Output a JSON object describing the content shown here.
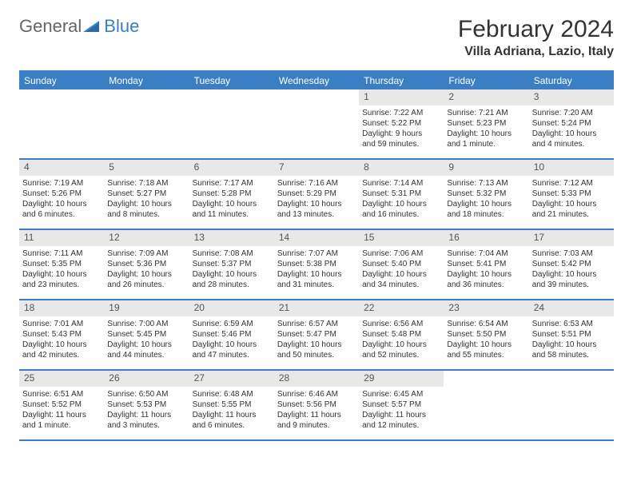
{
  "logo": {
    "text1": "General",
    "text2": "Blue"
  },
  "title": "February 2024",
  "location": "Villa Adriana, Lazio, Italy",
  "colors": {
    "accent": "#3a7fc4",
    "header_bg": "#3a7fc4",
    "header_text": "#ffffff",
    "daynum_bg": "#e8e8e8",
    "text": "#333333"
  },
  "day_headers": [
    "Sunday",
    "Monday",
    "Tuesday",
    "Wednesday",
    "Thursday",
    "Friday",
    "Saturday"
  ],
  "weeks": [
    [
      {
        "empty": true
      },
      {
        "empty": true
      },
      {
        "empty": true
      },
      {
        "empty": true
      },
      {
        "num": "1",
        "sunrise": "Sunrise: 7:22 AM",
        "sunset": "Sunset: 5:22 PM",
        "daylight1": "Daylight: 9 hours",
        "daylight2": "and 59 minutes."
      },
      {
        "num": "2",
        "sunrise": "Sunrise: 7:21 AM",
        "sunset": "Sunset: 5:23 PM",
        "daylight1": "Daylight: 10 hours",
        "daylight2": "and 1 minute."
      },
      {
        "num": "3",
        "sunrise": "Sunrise: 7:20 AM",
        "sunset": "Sunset: 5:24 PM",
        "daylight1": "Daylight: 10 hours",
        "daylight2": "and 4 minutes."
      }
    ],
    [
      {
        "num": "4",
        "sunrise": "Sunrise: 7:19 AM",
        "sunset": "Sunset: 5:26 PM",
        "daylight1": "Daylight: 10 hours",
        "daylight2": "and 6 minutes."
      },
      {
        "num": "5",
        "sunrise": "Sunrise: 7:18 AM",
        "sunset": "Sunset: 5:27 PM",
        "daylight1": "Daylight: 10 hours",
        "daylight2": "and 8 minutes."
      },
      {
        "num": "6",
        "sunrise": "Sunrise: 7:17 AM",
        "sunset": "Sunset: 5:28 PM",
        "daylight1": "Daylight: 10 hours",
        "daylight2": "and 11 minutes."
      },
      {
        "num": "7",
        "sunrise": "Sunrise: 7:16 AM",
        "sunset": "Sunset: 5:29 PM",
        "daylight1": "Daylight: 10 hours",
        "daylight2": "and 13 minutes."
      },
      {
        "num": "8",
        "sunrise": "Sunrise: 7:14 AM",
        "sunset": "Sunset: 5:31 PM",
        "daylight1": "Daylight: 10 hours",
        "daylight2": "and 16 minutes."
      },
      {
        "num": "9",
        "sunrise": "Sunrise: 7:13 AM",
        "sunset": "Sunset: 5:32 PM",
        "daylight1": "Daylight: 10 hours",
        "daylight2": "and 18 minutes."
      },
      {
        "num": "10",
        "sunrise": "Sunrise: 7:12 AM",
        "sunset": "Sunset: 5:33 PM",
        "daylight1": "Daylight: 10 hours",
        "daylight2": "and 21 minutes."
      }
    ],
    [
      {
        "num": "11",
        "sunrise": "Sunrise: 7:11 AM",
        "sunset": "Sunset: 5:35 PM",
        "daylight1": "Daylight: 10 hours",
        "daylight2": "and 23 minutes."
      },
      {
        "num": "12",
        "sunrise": "Sunrise: 7:09 AM",
        "sunset": "Sunset: 5:36 PM",
        "daylight1": "Daylight: 10 hours",
        "daylight2": "and 26 minutes."
      },
      {
        "num": "13",
        "sunrise": "Sunrise: 7:08 AM",
        "sunset": "Sunset: 5:37 PM",
        "daylight1": "Daylight: 10 hours",
        "daylight2": "and 28 minutes."
      },
      {
        "num": "14",
        "sunrise": "Sunrise: 7:07 AM",
        "sunset": "Sunset: 5:38 PM",
        "daylight1": "Daylight: 10 hours",
        "daylight2": "and 31 minutes."
      },
      {
        "num": "15",
        "sunrise": "Sunrise: 7:06 AM",
        "sunset": "Sunset: 5:40 PM",
        "daylight1": "Daylight: 10 hours",
        "daylight2": "and 34 minutes."
      },
      {
        "num": "16",
        "sunrise": "Sunrise: 7:04 AM",
        "sunset": "Sunset: 5:41 PM",
        "daylight1": "Daylight: 10 hours",
        "daylight2": "and 36 minutes."
      },
      {
        "num": "17",
        "sunrise": "Sunrise: 7:03 AM",
        "sunset": "Sunset: 5:42 PM",
        "daylight1": "Daylight: 10 hours",
        "daylight2": "and 39 minutes."
      }
    ],
    [
      {
        "num": "18",
        "sunrise": "Sunrise: 7:01 AM",
        "sunset": "Sunset: 5:43 PM",
        "daylight1": "Daylight: 10 hours",
        "daylight2": "and 42 minutes."
      },
      {
        "num": "19",
        "sunrise": "Sunrise: 7:00 AM",
        "sunset": "Sunset: 5:45 PM",
        "daylight1": "Daylight: 10 hours",
        "daylight2": "and 44 minutes."
      },
      {
        "num": "20",
        "sunrise": "Sunrise: 6:59 AM",
        "sunset": "Sunset: 5:46 PM",
        "daylight1": "Daylight: 10 hours",
        "daylight2": "and 47 minutes."
      },
      {
        "num": "21",
        "sunrise": "Sunrise: 6:57 AM",
        "sunset": "Sunset: 5:47 PM",
        "daylight1": "Daylight: 10 hours",
        "daylight2": "and 50 minutes."
      },
      {
        "num": "22",
        "sunrise": "Sunrise: 6:56 AM",
        "sunset": "Sunset: 5:48 PM",
        "daylight1": "Daylight: 10 hours",
        "daylight2": "and 52 minutes."
      },
      {
        "num": "23",
        "sunrise": "Sunrise: 6:54 AM",
        "sunset": "Sunset: 5:50 PM",
        "daylight1": "Daylight: 10 hours",
        "daylight2": "and 55 minutes."
      },
      {
        "num": "24",
        "sunrise": "Sunrise: 6:53 AM",
        "sunset": "Sunset: 5:51 PM",
        "daylight1": "Daylight: 10 hours",
        "daylight2": "and 58 minutes."
      }
    ],
    [
      {
        "num": "25",
        "sunrise": "Sunrise: 6:51 AM",
        "sunset": "Sunset: 5:52 PM",
        "daylight1": "Daylight: 11 hours",
        "daylight2": "and 1 minute."
      },
      {
        "num": "26",
        "sunrise": "Sunrise: 6:50 AM",
        "sunset": "Sunset: 5:53 PM",
        "daylight1": "Daylight: 11 hours",
        "daylight2": "and 3 minutes."
      },
      {
        "num": "27",
        "sunrise": "Sunrise: 6:48 AM",
        "sunset": "Sunset: 5:55 PM",
        "daylight1": "Daylight: 11 hours",
        "daylight2": "and 6 minutes."
      },
      {
        "num": "28",
        "sunrise": "Sunrise: 6:46 AM",
        "sunset": "Sunset: 5:56 PM",
        "daylight1": "Daylight: 11 hours",
        "daylight2": "and 9 minutes."
      },
      {
        "num": "29",
        "sunrise": "Sunrise: 6:45 AM",
        "sunset": "Sunset: 5:57 PM",
        "daylight1": "Daylight: 11 hours",
        "daylight2": "and 12 minutes."
      },
      {
        "empty": true
      },
      {
        "empty": true
      }
    ]
  ]
}
